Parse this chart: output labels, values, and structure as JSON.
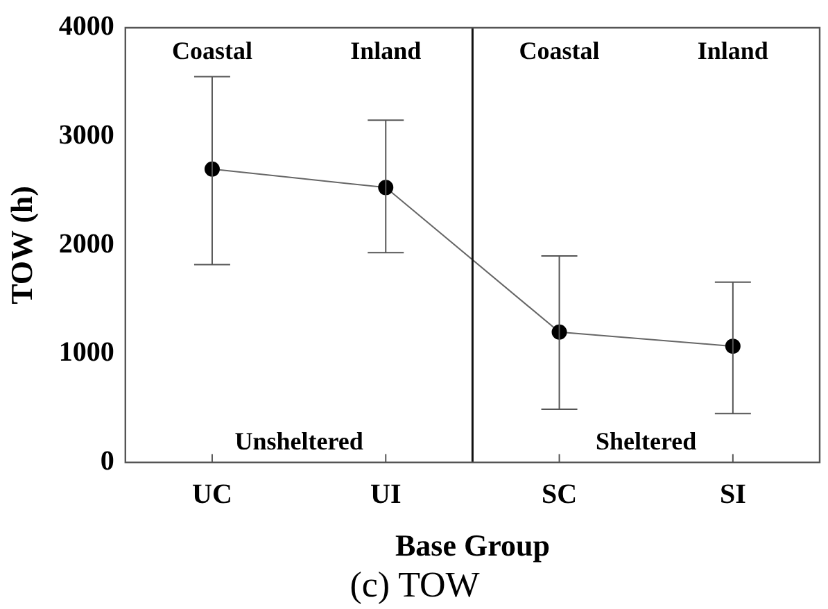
{
  "chart_data": {
    "type": "line",
    "title": "(c) TOW",
    "xlabel": "Base Group",
    "ylabel": "TOW (h)",
    "categories": [
      "UC",
      "UI",
      "SC",
      "SI"
    ],
    "series": [
      {
        "color": "#000000",
        "values": [
          2700,
          2530,
          1200,
          1070
        ],
        "errors": [
          [
            1820,
            3550
          ],
          [
            1930,
            3150
          ],
          [
            490,
            1900
          ],
          [
            450,
            1660
          ]
        ]
      }
    ],
    "ylim": [
      0,
      4000
    ],
    "yticks": [
      0,
      1000,
      2000,
      3000,
      4000
    ],
    "grid": false,
    "legend": false,
    "marker": "circle",
    "line_style": "solid",
    "annotations": [
      "Coastal",
      "Inland",
      "Coastal",
      "Inland",
      "Unsheltered",
      "Sheltered"
    ]
  }
}
